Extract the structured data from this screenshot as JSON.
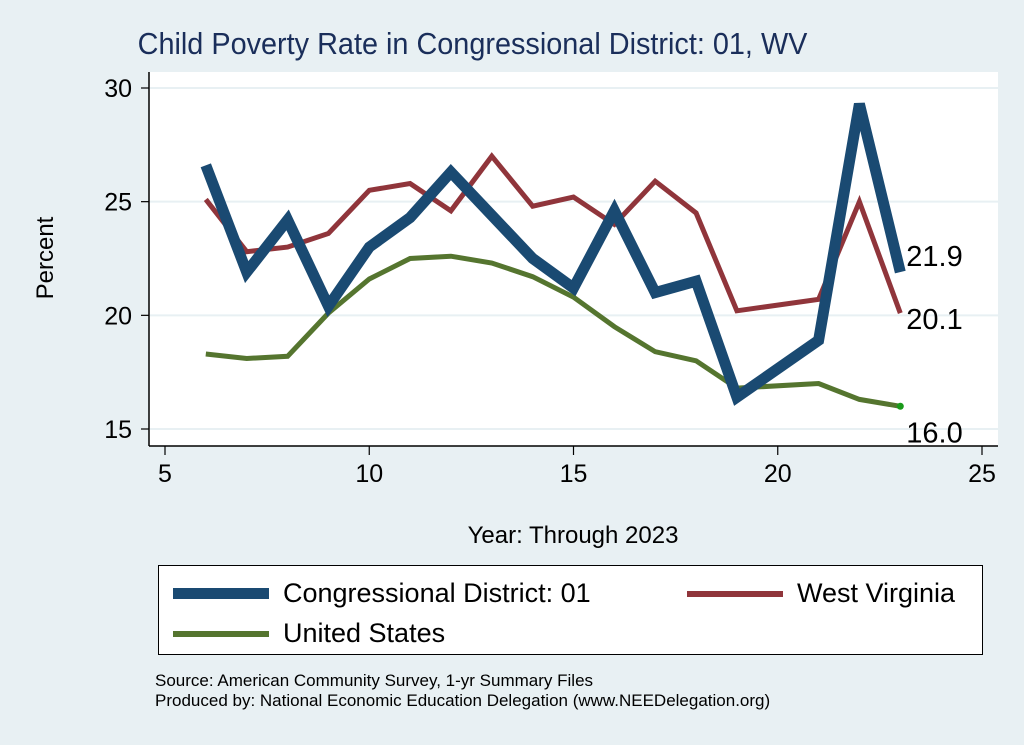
{
  "chart_data": {
    "type": "line",
    "title": "Child Poverty Rate in Congressional District:  01, WV",
    "xlabel": "Year: Through 2023",
    "ylabel": "Percent",
    "xlim": [
      5,
      25
    ],
    "ylim": [
      15,
      30
    ],
    "x_ticks": [
      "5",
      "10",
      "15",
      "20",
      "25"
    ],
    "y_ticks": [
      "15",
      "20",
      "25",
      "30"
    ],
    "grid": true,
    "legend_position": "bottom",
    "series": [
      {
        "name": "Congressional District:  01",
        "color": "#1a4a72",
        "x": [
          6,
          7,
          8,
          9,
          10,
          11,
          12,
          13,
          14,
          15,
          16,
          17,
          18,
          19,
          21,
          22,
          23
        ],
        "values": [
          26.6,
          21.9,
          24.2,
          20.4,
          23.0,
          24.3,
          26.3,
          24.4,
          22.5,
          21.2,
          24.6,
          21.0,
          21.5,
          16.4,
          18.9,
          29.3,
          21.9
        ],
        "end_label": "21.9"
      },
      {
        "name": "West Virginia",
        "color": "#90353b",
        "x": [
          6,
          7,
          8,
          9,
          10,
          11,
          12,
          13,
          14,
          15,
          16,
          17,
          18,
          19,
          21,
          22,
          23
        ],
        "values": [
          25.1,
          22.8,
          23.0,
          23.6,
          25.5,
          25.8,
          24.6,
          27.0,
          24.8,
          25.2,
          24.0,
          25.9,
          24.5,
          20.2,
          20.7,
          25.0,
          20.1
        ],
        "end_label": "20.1"
      },
      {
        "name": "United States",
        "color": "#55752f",
        "x": [
          6,
          7,
          8,
          9,
          10,
          11,
          12,
          13,
          14,
          15,
          16,
          17,
          18,
          19,
          21,
          22,
          23
        ],
        "values": [
          18.3,
          18.1,
          18.2,
          20.1,
          21.6,
          22.5,
          22.6,
          22.3,
          21.7,
          20.8,
          19.5,
          18.4,
          18.0,
          16.8,
          17.0,
          16.3,
          16.0
        ],
        "end_label": "16.0"
      }
    ]
  },
  "notes": {
    "source": "Source: American Community Survey, 1-yr Summary Files",
    "produced_by": "Produced by: National Economic Education Delegation (www.NEEDelegation.org)"
  }
}
